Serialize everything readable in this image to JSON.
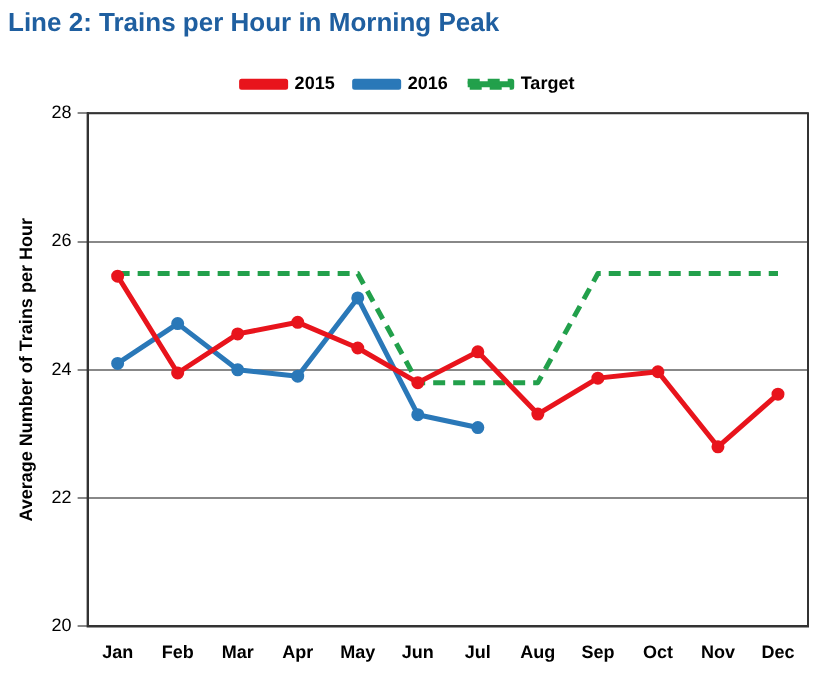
{
  "chart_data": {
    "type": "line",
    "title": "Line 2: Trains per Hour in Morning Peak",
    "ylabel": "Average Number of Trains per Hour",
    "categories": [
      "Jan",
      "Feb",
      "Mar",
      "Apr",
      "May",
      "Jun",
      "Jul",
      "Aug",
      "Sep",
      "Oct",
      "Nov",
      "Dec"
    ],
    "series": [
      {
        "name": "2015",
        "color": "#e8141c",
        "marker": "circle",
        "line_style": "solid",
        "values": [
          25.46,
          23.95,
          24.56,
          24.74,
          24.34,
          23.8,
          24.28,
          23.31,
          23.87,
          23.97,
          22.8,
          23.62
        ]
      },
      {
        "name": "2016",
        "color": "#2a78b8",
        "marker": "circle",
        "line_style": "solid",
        "values": [
          24.1,
          24.72,
          24.0,
          23.9,
          25.12,
          23.3,
          23.1,
          null,
          null,
          null,
          null,
          null
        ]
      },
      {
        "name": "Target",
        "color": "#22a04b",
        "marker": "none",
        "line_style": "dashed",
        "values": [
          25.5,
          25.5,
          25.5,
          25.5,
          25.5,
          23.8,
          23.8,
          23.8,
          25.5,
          25.5,
          25.5,
          25.5
        ]
      }
    ],
    "ylim": [
      20,
      28
    ],
    "yticks": [
      20,
      22,
      24,
      26,
      28
    ],
    "grid": "y",
    "legend": "top"
  }
}
